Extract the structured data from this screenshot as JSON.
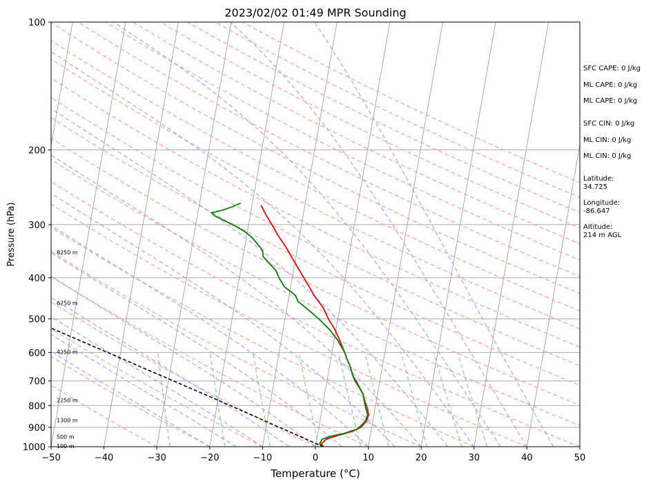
{
  "chart_data": {
    "type": "line",
    "subtype": "skew-t log-p sounding",
    "title": "2023/02/02 01:49 MPR Sounding",
    "xlabel": "Temperature (°C)",
    "ylabel": "Pressure (hPa)",
    "xlim": [
      -50,
      50
    ],
    "ylim": [
      1000,
      100
    ],
    "y_scale": "log",
    "grid": true,
    "x_ticks": [
      -50,
      -40,
      -30,
      -20,
      -10,
      0,
      10,
      20,
      30,
      40,
      50
    ],
    "x_tick_labels": [
      "−50",
      "−40",
      "−30",
      "−20",
      "−10",
      "0",
      "10",
      "20",
      "30",
      "40",
      "50"
    ],
    "y_ticks": [
      1000,
      900,
      800,
      700,
      600,
      500,
      400,
      300,
      200,
      100
    ],
    "y_tick_labels": [
      "1000",
      "900",
      "800",
      "700",
      "600",
      "500",
      "400",
      "300",
      "200",
      "100"
    ],
    "height_labels": [
      {
        "p": 1000,
        "label": "100 m"
      },
      {
        "p": 950,
        "label": "500 m"
      },
      {
        "p": 870,
        "label": "1300 m"
      },
      {
        "p": 780,
        "label": "2250 m"
      },
      {
        "p": 600,
        "label": "4250 m"
      },
      {
        "p": 460,
        "label": "6250 m"
      },
      {
        "p": 350,
        "label": "8250 m"
      }
    ],
    "series": [
      {
        "role": "temperature",
        "color": "#ff0000",
        "points": [
          [
            1000,
            1.5
          ],
          [
            985,
            1.0
          ],
          [
            960,
            1.8
          ],
          [
            940,
            4.0
          ],
          [
            920,
            6.5
          ],
          [
            900,
            8.0
          ],
          [
            870,
            8.8
          ],
          [
            840,
            9.0
          ],
          [
            810,
            8.5
          ],
          [
            780,
            7.8
          ],
          [
            750,
            7.2
          ],
          [
            720,
            6.2
          ],
          [
            700,
            5.5
          ],
          [
            680,
            4.7
          ],
          [
            650,
            4.0
          ],
          [
            620,
            3.0
          ],
          [
            600,
            2.4
          ],
          [
            560,
            1.0
          ],
          [
            530,
            -0.2
          ],
          [
            500,
            -1.8
          ],
          [
            470,
            -3.2
          ],
          [
            440,
            -5.3
          ],
          [
            420,
            -6.5
          ],
          [
            400,
            -7.8
          ],
          [
            370,
            -9.9
          ],
          [
            340,
            -12.1
          ],
          [
            320,
            -13.9
          ],
          [
            300,
            -15.6
          ],
          [
            285,
            -17.0
          ],
          [
            270,
            -18.3
          ]
        ]
      },
      {
        "role": "dewpoint",
        "color": "#008000",
        "points": [
          [
            1000,
            1.3
          ],
          [
            985,
            0.7
          ],
          [
            960,
            1.0
          ],
          [
            945,
            2.5
          ],
          [
            930,
            5.0
          ],
          [
            910,
            7.2
          ],
          [
            890,
            8.0
          ],
          [
            870,
            8.6
          ],
          [
            840,
            8.8
          ],
          [
            810,
            8.2
          ],
          [
            780,
            7.7
          ],
          [
            750,
            7.2
          ],
          [
            720,
            6.1
          ],
          [
            700,
            5.3
          ],
          [
            680,
            4.7
          ],
          [
            650,
            4.0
          ],
          [
            620,
            3.0
          ],
          [
            600,
            2.4
          ],
          [
            560,
            0.6
          ],
          [
            530,
            -1.2
          ],
          [
            500,
            -3.6
          ],
          [
            475,
            -6.0
          ],
          [
            455,
            -8.1
          ],
          [
            440,
            -8.8
          ],
          [
            420,
            -11.2
          ],
          [
            400,
            -12.5
          ],
          [
            385,
            -13.3
          ],
          [
            370,
            -14.8
          ],
          [
            357,
            -16.2
          ],
          [
            345,
            -16.5
          ],
          [
            335,
            -17.5
          ],
          [
            322,
            -18.9
          ],
          [
            312,
            -20.4
          ],
          [
            303,
            -22.3
          ],
          [
            294,
            -24.6
          ],
          [
            286,
            -26.7
          ],
          [
            281,
            -27.4
          ],
          [
            280,
            -26.7
          ],
          [
            277,
            -25.3
          ],
          [
            272,
            -23.6
          ],
          [
            267,
            -22.2
          ]
        ]
      },
      {
        "role": "parcel path",
        "color": "#000000",
        "dashed": true,
        "points": [
          [
            1000,
            1.5
          ],
          [
            980,
            -0.3
          ],
          [
            960,
            -2.0
          ],
          [
            940,
            -3.8
          ],
          [
            920,
            -5.6
          ],
          [
            900,
            -7.5
          ],
          [
            880,
            -9.4
          ],
          [
            860,
            -11.3
          ],
          [
            840,
            -13.3
          ],
          [
            820,
            -15.4
          ],
          [
            800,
            -17.5
          ],
          [
            780,
            -19.7
          ],
          [
            760,
            -21.9
          ],
          [
            740,
            -24.2
          ],
          [
            720,
            -26.6
          ],
          [
            700,
            -29.0
          ],
          [
            650,
            -35.5
          ],
          [
            600,
            -42.4
          ],
          [
            550,
            -50.0
          ],
          [
            500,
            -58.2
          ],
          [
            450,
            -67.3
          ],
          [
            400,
            -77.3
          ],
          [
            350,
            -88.6
          ],
          [
            300,
            -101.6
          ],
          [
            270,
            -110.5
          ]
        ]
      }
    ]
  },
  "stats": {
    "sfc_cape": "SFC CAPE: 0 J/kg",
    "ml_cape_1": "ML CAPE: 0 J/kg",
    "ml_cape_2": "ML CAPE: 0 J/kg",
    "sfc_cin": "SFC CIN: 0 J/kg",
    "ml_cin_1": "ML CIN: 0 J/kg",
    "ml_cin_2": "ML CIN: 0 J/kg",
    "latitude_label": "Latitude:",
    "latitude_value": "34.725",
    "longitude_label": "Longitude:",
    "longitude_value": "-86.647",
    "altitude_label": "Altitude:",
    "altitude_value": "214 m AGL"
  },
  "colors": {
    "dry_adiabat": "#ff9a9a",
    "moist_adiabat": "#9a9aff",
    "mixing_ratio": "#7fbf7f",
    "isotherm": "#a0a0a0",
    "isobar": "#aaaaaa"
  }
}
